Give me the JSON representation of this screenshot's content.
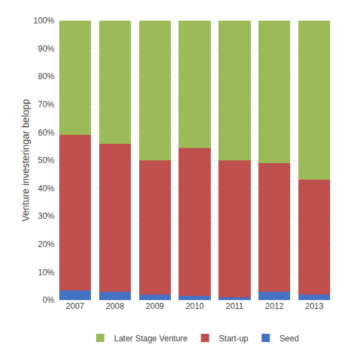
{
  "chart_data": {
    "type": "bar",
    "stacked": true,
    "categories": [
      "2007",
      "2008",
      "2009",
      "2010",
      "2011",
      "2012",
      "2013"
    ],
    "series": [
      {
        "name": "Seed",
        "color": "#4472C4",
        "values": [
          3.5,
          3.0,
          2.0,
          1.5,
          1.0,
          3.0,
          2.0
        ]
      },
      {
        "name": "Start-up",
        "color": "#C0504D",
        "values": [
          55.5,
          53.0,
          48.0,
          53.0,
          49.0,
          46.0,
          41.0
        ]
      },
      {
        "name": "Later Stage Venture",
        "color": "#9BBB59",
        "values": [
          41.0,
          44.0,
          50.0,
          45.5,
          50.0,
          51.0,
          57.0
        ]
      }
    ],
    "ylabel": "Venture investeringar belopp",
    "ylim": [
      0,
      100
    ],
    "yticks": [
      {
        "value": 0,
        "label": "0%"
      },
      {
        "value": 10,
        "label": "10%"
      },
      {
        "value": 20,
        "label": "20%"
      },
      {
        "value": 30,
        "label": "30%"
      },
      {
        "value": 40,
        "label": "40%"
      },
      {
        "value": 50,
        "label": "50%"
      },
      {
        "value": 60,
        "label": "60%"
      },
      {
        "value": 70,
        "label": "70%"
      },
      {
        "value": 80,
        "label": "80%"
      },
      {
        "value": 90,
        "label": "90%"
      },
      {
        "value": 100,
        "label": "100%"
      }
    ],
    "grid": true,
    "legend": "bottom"
  }
}
